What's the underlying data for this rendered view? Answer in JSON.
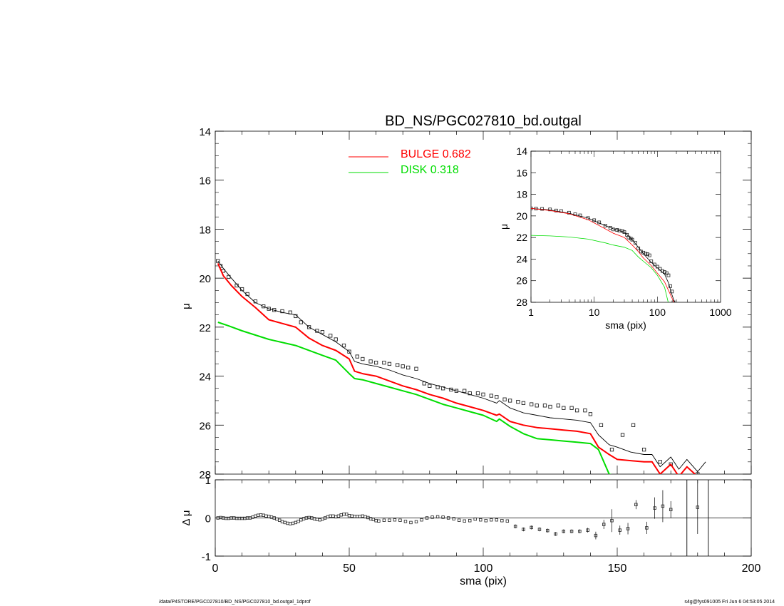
{
  "footer": {
    "left": "/data/P4STORE/PGC027810/BD_NS/PGC027810_bd.outgal_1dprof",
    "right": "s4g@fys091005  Fri Jun  6 04:53:05 2014"
  },
  "chart_data": [
    {
      "type": "line",
      "title": "BD_NS/PGC027810_bd.outgal",
      "xlabel": "",
      "ylabel": "μ",
      "xlim": [
        0,
        200
      ],
      "ylim": [
        28,
        14
      ],
      "yticks": [
        14,
        16,
        18,
        20,
        22,
        24,
        26,
        28
      ],
      "legend": {
        "placement": "top-center",
        "entries": [
          {
            "label": "BULGE",
            "value": "0.682",
            "color": "#ff0000"
          },
          {
            "label": "DISK",
            "value": "0.318",
            "color": "#00dd00"
          }
        ]
      },
      "series": [
        {
          "role": "data",
          "style": "open-squares",
          "color": "#000000",
          "x": [
            1,
            2,
            3,
            5,
            8,
            10,
            12,
            15,
            18,
            20,
            22,
            25,
            28,
            30,
            32,
            35,
            38,
            40,
            43,
            45,
            48,
            50,
            53,
            55,
            58,
            60,
            63,
            65,
            68,
            70,
            72,
            75,
            78,
            80,
            83,
            85,
            88,
            90,
            93,
            95,
            98,
            100,
            103,
            105,
            108,
            110,
            113,
            115,
            118,
            120,
            123,
            125,
            128,
            130,
            133,
            135,
            138,
            140,
            144,
            148,
            152,
            156,
            160,
            166,
            170,
            176,
            180
          ],
          "y": [
            19.3,
            19.5,
            19.7,
            19.95,
            20.3,
            20.45,
            20.65,
            20.95,
            21.15,
            21.25,
            21.3,
            21.35,
            21.4,
            21.55,
            21.8,
            22.0,
            22.15,
            22.2,
            22.35,
            22.5,
            22.75,
            23.0,
            23.2,
            23.3,
            23.4,
            23.45,
            23.45,
            23.5,
            23.55,
            23.6,
            23.65,
            23.7,
            24.3,
            24.4,
            24.45,
            24.5,
            24.55,
            24.6,
            24.6,
            24.7,
            24.7,
            24.75,
            24.8,
            24.85,
            24.95,
            25.0,
            25.05,
            25.1,
            25.15,
            25.2,
            25.2,
            25.25,
            25.2,
            25.3,
            25.3,
            25.4,
            25.4,
            25.55,
            26.0,
            27.0,
            26.4,
            26.0,
            27.0,
            27.5,
            27.6,
            28.1,
            28.0
          ]
        },
        {
          "role": "model-total",
          "style": "line",
          "color": "#000000",
          "x": [
            1,
            3,
            6,
            10,
            15,
            20,
            25,
            30,
            35,
            40,
            45,
            50,
            52,
            55,
            60,
            65,
            70,
            75,
            80,
            85,
            90,
            95,
            100,
            105,
            106,
            110,
            115,
            120,
            125,
            130,
            135,
            140,
            143,
            147,
            150,
            155,
            160,
            163,
            166,
            170,
            173,
            176,
            180,
            183
          ],
          "y": [
            19.3,
            19.6,
            20.0,
            20.5,
            21.0,
            21.25,
            21.4,
            21.5,
            22.0,
            22.3,
            22.6,
            23.0,
            23.4,
            23.5,
            23.6,
            23.75,
            23.95,
            24.1,
            24.3,
            24.45,
            24.6,
            24.75,
            24.9,
            25.1,
            25.0,
            25.3,
            25.5,
            25.6,
            25.7,
            25.75,
            25.8,
            25.9,
            26.4,
            26.8,
            26.9,
            27.1,
            27.2,
            27.2,
            27.7,
            27.3,
            27.8,
            27.4,
            27.9,
            27.5
          ]
        },
        {
          "role": "bulge",
          "style": "line",
          "color": "#ff0000",
          "width": 2,
          "x": [
            1,
            3,
            6,
            10,
            15,
            20,
            25,
            30,
            35,
            40,
            45,
            50,
            52,
            55,
            60,
            65,
            70,
            75,
            80,
            85,
            90,
            95,
            100,
            105,
            106,
            110,
            115,
            120,
            125,
            130,
            135,
            140,
            143,
            147,
            150,
            155,
            160,
            163,
            166,
            170,
            173,
            176,
            180,
            183
          ],
          "y": [
            19.4,
            19.9,
            20.3,
            20.75,
            21.2,
            21.7,
            21.85,
            22.0,
            22.45,
            22.75,
            22.95,
            23.3,
            23.8,
            23.9,
            24.0,
            24.2,
            24.4,
            24.55,
            24.75,
            24.9,
            25.1,
            25.25,
            25.4,
            25.6,
            25.55,
            25.85,
            26.0,
            26.1,
            26.15,
            26.2,
            26.25,
            26.35,
            26.9,
            27.2,
            27.4,
            27.45,
            27.5,
            27.5,
            28.0,
            27.6,
            28.1,
            27.7,
            28.1,
            28.1
          ]
        },
        {
          "role": "disk",
          "style": "line",
          "color": "#00dd00",
          "width": 2,
          "x": [
            1,
            5,
            10,
            20,
            30,
            40,
            45,
            50,
            52,
            55,
            60,
            65,
            70,
            75,
            80,
            85,
            90,
            95,
            100,
            105,
            106,
            110,
            115,
            120,
            125,
            130,
            135,
            140,
            143,
            147,
            150
          ],
          "y": [
            21.8,
            21.95,
            22.15,
            22.5,
            22.75,
            23.15,
            23.35,
            23.9,
            24.1,
            24.15,
            24.3,
            24.45,
            24.6,
            24.75,
            24.95,
            25.15,
            25.3,
            25.45,
            25.6,
            25.85,
            25.75,
            26.05,
            26.35,
            26.55,
            26.6,
            26.65,
            26.7,
            26.75,
            27.0,
            28.0,
            28.1
          ]
        }
      ]
    },
    {
      "type": "line",
      "title": "",
      "xlabel": "sma (pix)",
      "ylabel": "μ",
      "xscale": "log",
      "xlim": [
        1,
        1000
      ],
      "ylim": [
        28,
        14
      ],
      "xticks": [
        1,
        10,
        100,
        1000
      ],
      "yticks": [
        14,
        16,
        18,
        20,
        22,
        24,
        26,
        28
      ],
      "placement": "inset-top-right",
      "series": [
        {
          "role": "data",
          "style": "open-squares",
          "color": "#000000",
          "x": [
            1,
            1.2,
            1.5,
            2,
            2.5,
            3,
            4,
            5,
            6,
            8,
            10,
            12,
            15,
            18,
            20,
            23,
            25,
            28,
            30,
            33,
            35,
            38,
            40,
            45,
            50,
            55,
            60,
            65,
            70,
            75,
            80,
            90,
            100,
            110,
            120,
            130,
            140,
            150,
            160,
            170,
            180
          ],
          "y": [
            19.3,
            19.32,
            19.35,
            19.4,
            19.5,
            19.55,
            19.7,
            19.85,
            19.95,
            20.2,
            20.4,
            20.6,
            20.9,
            21.1,
            21.25,
            21.3,
            21.35,
            21.4,
            21.5,
            21.75,
            22.0,
            22.1,
            22.2,
            22.5,
            23.0,
            23.3,
            23.4,
            23.5,
            23.55,
            23.65,
            24.2,
            24.5,
            24.7,
            24.9,
            25.1,
            25.2,
            25.3,
            25.5,
            26.5,
            27.0,
            28.0
          ]
        },
        {
          "role": "model-total",
          "style": "line",
          "color": "#000000",
          "x": [
            1,
            2,
            4,
            8,
            15,
            20,
            30,
            40,
            50,
            60,
            80,
            100,
            130,
            150,
            170,
            190
          ],
          "y": [
            19.3,
            19.45,
            19.75,
            20.2,
            20.9,
            21.2,
            21.5,
            22.2,
            22.9,
            23.5,
            24.3,
            24.8,
            25.4,
            26.2,
            27.3,
            28.1
          ]
        },
        {
          "role": "bulge",
          "style": "line",
          "color": "#ff0000",
          "x": [
            1,
            2,
            4,
            8,
            15,
            20,
            30,
            40,
            50,
            60,
            80,
            100,
            130,
            150,
            170,
            185
          ],
          "y": [
            19.3,
            19.5,
            19.8,
            20.35,
            21.2,
            21.6,
            22.0,
            22.7,
            23.3,
            23.9,
            24.6,
            25.3,
            26.1,
            26.9,
            27.6,
            28.1
          ]
        },
        {
          "role": "disk",
          "style": "line",
          "color": "#00dd00",
          "x": [
            1,
            2,
            4,
            8,
            15,
            20,
            30,
            40,
            50,
            60,
            80,
            100,
            130,
            150
          ],
          "y": [
            21.8,
            21.85,
            21.95,
            22.15,
            22.5,
            22.7,
            22.9,
            23.2,
            23.8,
            24.2,
            24.8,
            25.5,
            26.6,
            28.1
          ]
        }
      ]
    },
    {
      "type": "scatter",
      "title": "",
      "xlabel": "sma (pix)",
      "ylabel": "Δ μ",
      "xlim": [
        0,
        200
      ],
      "ylim": [
        -1,
        1
      ],
      "xticks": [
        0,
        50,
        100,
        150,
        200
      ],
      "yticks": [
        -1,
        0,
        1
      ],
      "placement": "bottom-residuals",
      "zero_line": 0,
      "vertical_lines": [
        176,
        184
      ],
      "series": [
        {
          "role": "residual",
          "style": "open-squares",
          "color": "#000000",
          "x": [
            1,
            2,
            3,
            4,
            5,
            6,
            7,
            8,
            9,
            10,
            11,
            12,
            13,
            14,
            15,
            16,
            17,
            18,
            19,
            20,
            21,
            22,
            23,
            24,
            25,
            26,
            27,
            28,
            29,
            30,
            31,
            32,
            33,
            34,
            35,
            36,
            37,
            38,
            39,
            40,
            41,
            42,
            43,
            44,
            45,
            46,
            47,
            48,
            49,
            50,
            51,
            52,
            53,
            54,
            55,
            56,
            57,
            58,
            59,
            60,
            61,
            63,
            65,
            67,
            69,
            71,
            73,
            75,
            77,
            79,
            81,
            83,
            85,
            87,
            89,
            91,
            93,
            95,
            97,
            99,
            101,
            103,
            105,
            107,
            109,
            112,
            115,
            118,
            121,
            124,
            127,
            130,
            133,
            136,
            139,
            142,
            145,
            148,
            151,
            154,
            157,
            161,
            164,
            167,
            170,
            180
          ],
          "y": [
            0.0,
            0.01,
            0.0,
            -0.01,
            -0.01,
            0.0,
            0.0,
            -0.01,
            -0.01,
            -0.01,
            -0.01,
            0.0,
            0.0,
            0.02,
            0.05,
            0.07,
            0.08,
            0.07,
            0.05,
            0.04,
            0.02,
            0.0,
            -0.03,
            -0.06,
            -0.1,
            -0.12,
            -0.14,
            -0.15,
            -0.14,
            -0.12,
            -0.09,
            -0.05,
            -0.02,
            0.0,
            0.01,
            0.0,
            -0.02,
            -0.04,
            -0.05,
            -0.03,
            0.0,
            0.03,
            0.05,
            0.05,
            0.03,
            0.05,
            0.08,
            0.1,
            0.1,
            0.06,
            0.05,
            0.04,
            0.04,
            0.04,
            0.05,
            0.03,
            0.01,
            -0.02,
            -0.04,
            -0.07,
            -0.08,
            -0.06,
            -0.06,
            -0.05,
            -0.06,
            -0.09,
            -0.12,
            -0.1,
            -0.05,
            0.0,
            0.02,
            0.03,
            0.02,
            0.0,
            -0.02,
            -0.06,
            -0.08,
            -0.07,
            -0.03,
            -0.05,
            -0.07,
            -0.05,
            -0.05,
            -0.07,
            -0.08,
            -0.22,
            -0.3,
            -0.25,
            -0.3,
            -0.33,
            -0.42,
            -0.35,
            -0.35,
            -0.35,
            -0.32,
            -0.46,
            -0.17,
            -0.07,
            -0.32,
            -0.28,
            0.35,
            -0.26,
            0.26,
            0.31,
            0.22,
            0.28
          ],
          "yerr": [
            0,
            0,
            0,
            0,
            0,
            0,
            0,
            0,
            0,
            0,
            0,
            0,
            0,
            0,
            0,
            0,
            0,
            0,
            0,
            0,
            0,
            0,
            0,
            0,
            0,
            0,
            0,
            0,
            0,
            0,
            0,
            0,
            0,
            0,
            0,
            0,
            0,
            0,
            0,
            0,
            0,
            0,
            0,
            0,
            0,
            0,
            0,
            0,
            0,
            0,
            0,
            0,
            0,
            0,
            0,
            0,
            0,
            0,
            0,
            0,
            0,
            0,
            0,
            0,
            0,
            0,
            0,
            0,
            0,
            0,
            0,
            0,
            0,
            0,
            0,
            0,
            0,
            0,
            0,
            0,
            0,
            0,
            0,
            0,
            0,
            0.05,
            0.05,
            0.05,
            0.05,
            0.05,
            0.05,
            0.05,
            0.05,
            0.05,
            0.06,
            0.1,
            0.12,
            0.3,
            0.12,
            0.15,
            0.12,
            0.16,
            0.28,
            0.42,
            0.22,
            0.7
          ]
        }
      ]
    }
  ]
}
